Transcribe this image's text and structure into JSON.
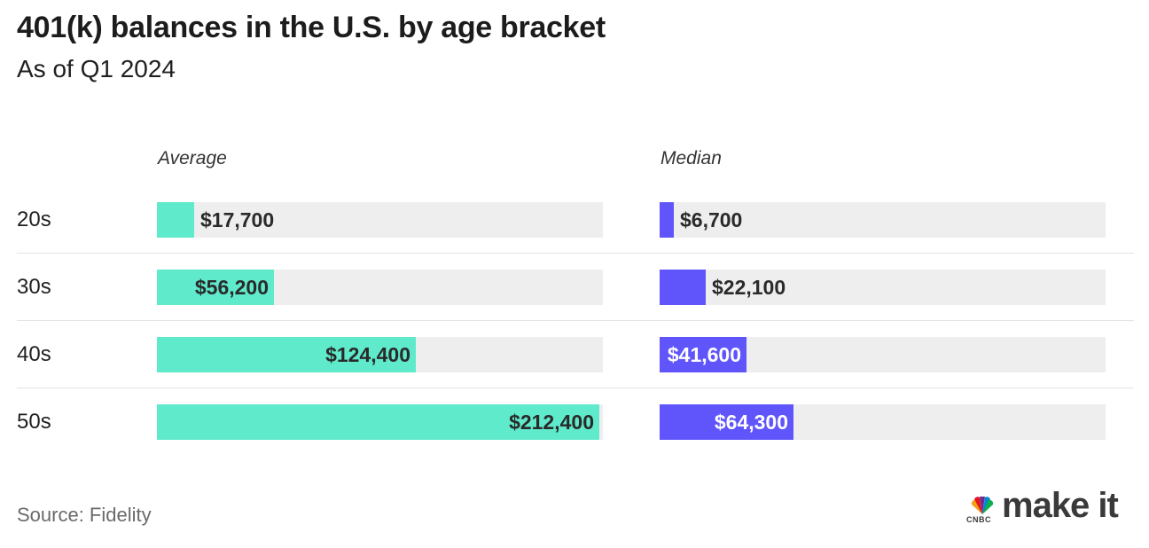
{
  "title": "401(k) balances in the U.S. by age bracket",
  "subtitle": "As of Q1 2024",
  "source": "Source: Fidelity",
  "logo": {
    "brand": "CNBC",
    "word": "make it"
  },
  "colors": {
    "average": "#5eeacb",
    "median": "#6055fb",
    "track": "#eeeeee"
  },
  "chart_data": [
    {
      "type": "bar",
      "orientation": "horizontal",
      "title": "Average",
      "categories": [
        "20s",
        "30s",
        "40s",
        "50s"
      ],
      "values": [
        17700,
        56200,
        124400,
        212400
      ],
      "labels": [
        "$17,700",
        "$56,200",
        "$124,400",
        "$212,400"
      ],
      "xlim": [
        0,
        214000
      ]
    },
    {
      "type": "bar",
      "orientation": "horizontal",
      "title": "Median",
      "categories": [
        "20s",
        "30s",
        "40s",
        "50s"
      ],
      "values": [
        6700,
        22100,
        41600,
        64300
      ],
      "labels": [
        "$6,700",
        "$22,100",
        "$41,600",
        "$64,300"
      ],
      "xlim": [
        0,
        214000
      ]
    }
  ]
}
